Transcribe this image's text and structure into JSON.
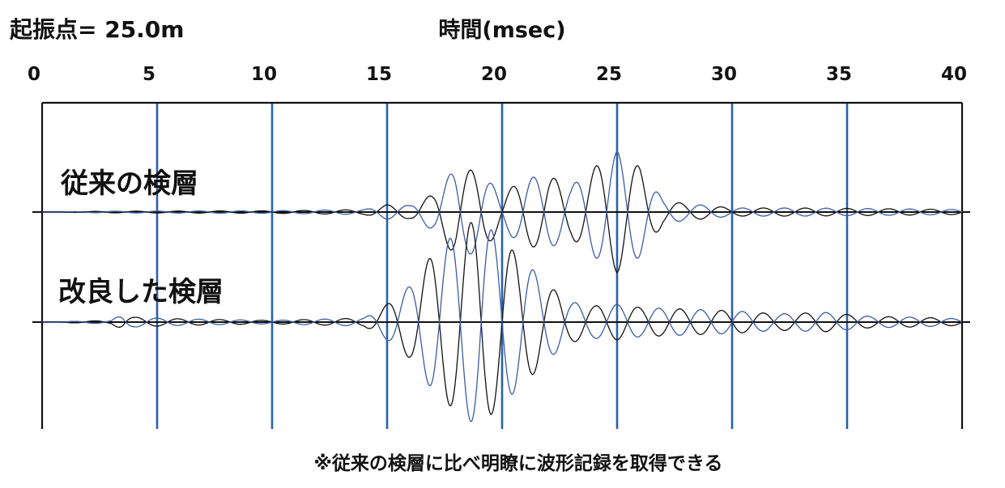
{
  "header": {
    "source_label": "起振点= 25.0m",
    "axis_title": "時間(msec)"
  },
  "note": "※従来の検層に比べ明瞭に波形記録を取得できる",
  "colors": {
    "grid": "#2a63a6",
    "frame": "#111111",
    "trace_black": "#111111",
    "trace_blue": "#3a5ca8"
  },
  "chart_data": {
    "type": "line",
    "title": "",
    "xlabel": "時間(msec)",
    "ylabel": "",
    "xlim": [
      0,
      40
    ],
    "xticks": [
      0,
      5,
      10,
      15,
      20,
      25,
      30,
      35,
      40
    ],
    "grid": "vertical",
    "traces": [
      {
        "label": "従来の検層",
        "series": [
          {
            "name": "",
            "color": "#111111",
            "envelope": [
              [
                0,
                0
              ],
              [
                3,
                0.01
              ],
              [
                10,
                0.015
              ],
              [
                14,
                0.03
              ],
              [
                15,
                0.09
              ],
              [
                16,
                0.08
              ],
              [
                17,
                0.22
              ],
              [
                18,
                0.55
              ],
              [
                19,
                0.5
              ],
              [
                20,
                0.22
              ],
              [
                21,
                0.42
              ],
              [
                22,
                0.45
              ],
              [
                23,
                0.32
              ],
              [
                24,
                0.55
              ],
              [
                25,
                0.75
              ],
              [
                26,
                0.55
              ],
              [
                27,
                0.15
              ],
              [
                28,
                0.1
              ],
              [
                29,
                0.08
              ],
              [
                30,
                0.05
              ],
              [
                33,
                0.05
              ],
              [
                35,
                0.045
              ],
              [
                37,
                0.04
              ],
              [
                40,
                0.03
              ]
            ]
          },
          {
            "name": "",
            "color": "#3a5ca8",
            "envelope": [
              [
                0,
                0
              ],
              [
                3,
                0.01
              ],
              [
                10,
                0.015
              ],
              [
                14,
                0.03
              ],
              [
                15,
                0.09
              ],
              [
                16,
                0.08
              ],
              [
                17,
                0.22
              ],
              [
                18,
                0.55
              ],
              [
                19,
                0.5
              ],
              [
                20,
                0.22
              ],
              [
                21,
                0.42
              ],
              [
                22,
                0.45
              ],
              [
                23,
                0.32
              ],
              [
                24,
                0.55
              ],
              [
                25,
                0.75
              ],
              [
                26,
                0.55
              ],
              [
                27,
                0.15
              ],
              [
                28,
                0.1
              ],
              [
                29,
                0.08
              ],
              [
                30,
                0.05
              ],
              [
                33,
                0.05
              ],
              [
                35,
                0.045
              ],
              [
                37,
                0.04
              ],
              [
                40,
                0.03
              ]
            ]
          }
        ]
      },
      {
        "label": "改良した検層",
        "series": [
          {
            "name": "",
            "color": "#111111",
            "envelope": [
              [
                0,
                0
              ],
              [
                3,
                0.02
              ],
              [
                3.5,
                0.1
              ],
              [
                4,
                0.06
              ],
              [
                6,
                0.04
              ],
              [
                10,
                0.02
              ],
              [
                14,
                0.05
              ],
              [
                15,
                0.22
              ],
              [
                16,
                0.45
              ],
              [
                17,
                0.85
              ],
              [
                18,
                1.1
              ],
              [
                19,
                1.3
              ],
              [
                20,
                1.0
              ],
              [
                21,
                0.75
              ],
              [
                22,
                0.45
              ],
              [
                23,
                0.25
              ],
              [
                24,
                0.2
              ],
              [
                25,
                0.22
              ],
              [
                26,
                0.18
              ],
              [
                28,
                0.16
              ],
              [
                30,
                0.14
              ],
              [
                32,
                0.1
              ],
              [
                34,
                0.12
              ],
              [
                36,
                0.07
              ],
              [
                38,
                0.06
              ],
              [
                40,
                0.04
              ]
            ]
          },
          {
            "name": "",
            "color": "#3a5ca8",
            "envelope": [
              [
                0,
                0
              ],
              [
                3,
                0.02
              ],
              [
                3.5,
                0.1
              ],
              [
                4,
                0.06
              ],
              [
                6,
                0.04
              ],
              [
                10,
                0.02
              ],
              [
                14,
                0.05
              ],
              [
                15,
                0.22
              ],
              [
                16,
                0.45
              ],
              [
                17,
                0.85
              ],
              [
                18,
                1.1
              ],
              [
                19,
                1.3
              ],
              [
                20,
                1.0
              ],
              [
                21,
                0.75
              ],
              [
                22,
                0.45
              ],
              [
                23,
                0.25
              ],
              [
                24,
                0.2
              ],
              [
                25,
                0.22
              ],
              [
                26,
                0.18
              ],
              [
                28,
                0.16
              ],
              [
                30,
                0.14
              ],
              [
                32,
                0.1
              ],
              [
                34,
                0.12
              ],
              [
                36,
                0.07
              ],
              [
                38,
                0.06
              ],
              [
                40,
                0.04
              ]
            ]
          }
        ]
      }
    ]
  }
}
